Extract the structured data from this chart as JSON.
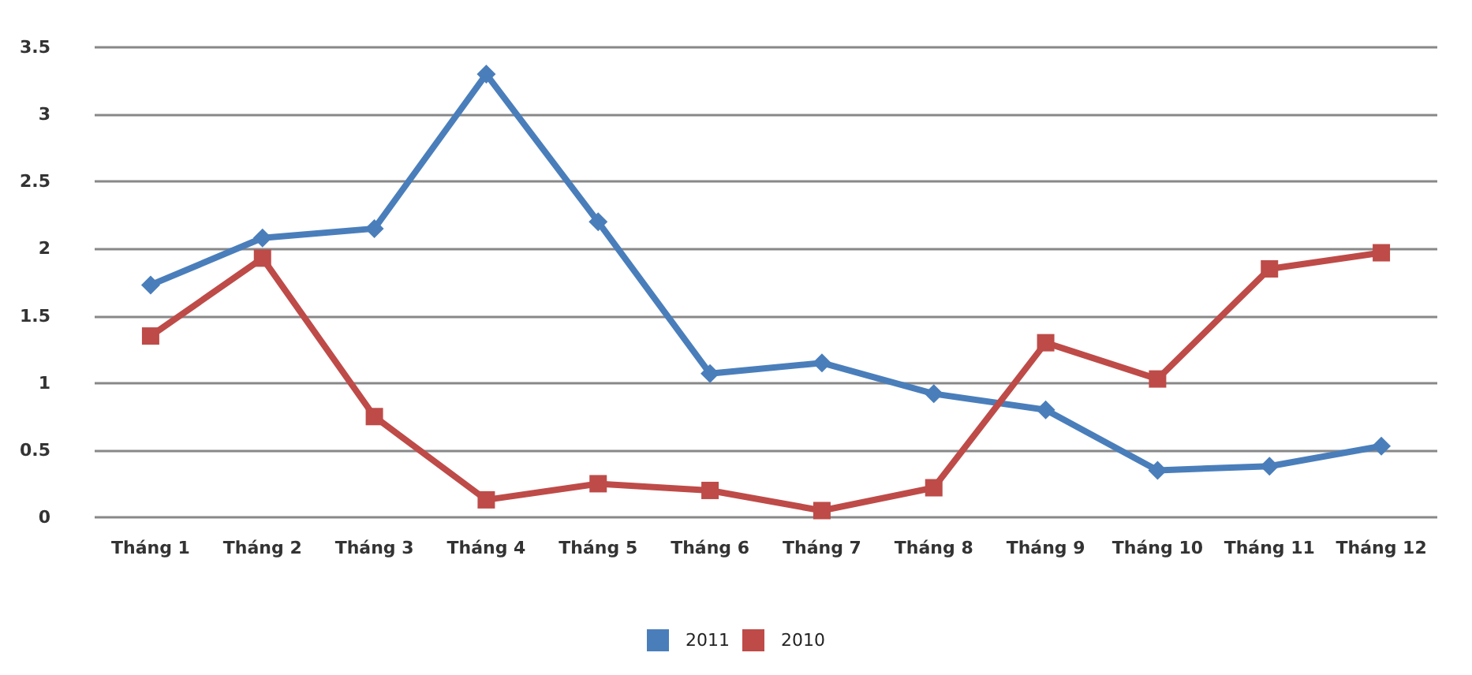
{
  "chart_data": {
    "type": "line",
    "categories": [
      "Tháng 1",
      "Tháng 2",
      "Tháng 3",
      "Tháng 4",
      "Tháng 5",
      "Tháng 6",
      "Tháng 7",
      "Tháng 8",
      "Tháng 9",
      "Tháng 10",
      "Tháng 11",
      "Tháng 12"
    ],
    "series": [
      {
        "name": "2011",
        "color": "#4a7ebb",
        "marker": "diamond",
        "values": [
          1.73,
          2.08,
          2.15,
          3.3,
          2.2,
          1.07,
          1.15,
          0.92,
          0.8,
          0.35,
          0.38,
          0.53
        ]
      },
      {
        "name": "2010",
        "color": "#be4b48",
        "marker": "square",
        "values": [
          1.35,
          1.93,
          0.75,
          0.13,
          0.25,
          0.2,
          0.05,
          0.22,
          1.3,
          1.03,
          1.85,
          1.97
        ]
      }
    ],
    "ylim": [
      0,
      3.5
    ],
    "yticks": [
      0,
      0.5,
      1,
      1.5,
      2,
      2.5,
      3,
      3.5
    ],
    "grid": "y",
    "legend": "bottom",
    "line_style": "solid"
  }
}
